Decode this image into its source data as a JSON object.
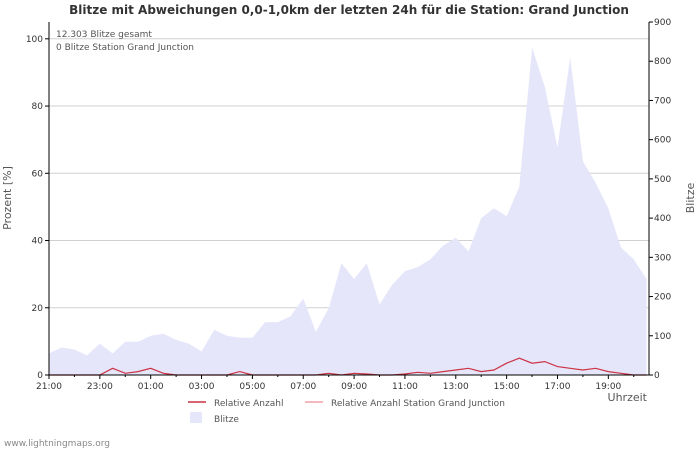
{
  "chart_data": {
    "type": "area",
    "title": "Blitze mit Abweichungen 0,0-1,0km der letzten 24h für die Station: Grand Junction",
    "ylabel_left": "Prozent   [%]",
    "ylabel_right": "Blitze",
    "xlabel": "Uhrzeit",
    "annotations": [
      "12.303 Blitze gesamt",
      "0 Blitze Station Grand Junction"
    ],
    "watermark": "www.lightningmaps.org",
    "x_ticks": [
      "21:00",
      "23:00",
      "01:00",
      "03:00",
      "05:00",
      "07:00",
      "09:00",
      "11:00",
      "13:00",
      "15:00",
      "17:00",
      "19:00"
    ],
    "ylim_left": [
      0,
      105
    ],
    "ylim_right": [
      0,
      900
    ],
    "yticks_left": [
      0,
      20,
      40,
      60,
      80,
      100
    ],
    "yticks_right": [
      0,
      100,
      200,
      300,
      400,
      500,
      600,
      700,
      800,
      900
    ],
    "grid": true,
    "x_range_hours": [
      0,
      23.6
    ],
    "series": [
      {
        "name": "Blitze",
        "axis": "right",
        "color": "#e6e6fa",
        "x_hours": [
          0.0,
          0.5,
          1.0,
          1.5,
          2.0,
          2.5,
          3.0,
          3.5,
          4.0,
          4.5,
          5.0,
          5.5,
          6.0,
          6.5,
          7.0,
          7.5,
          8.0,
          8.5,
          9.0,
          9.5,
          10.0,
          10.5,
          11.0,
          11.5,
          12.0,
          12.5,
          13.0,
          13.5,
          14.0,
          14.5,
          15.0,
          15.5,
          16.0,
          16.5,
          17.0,
          17.5,
          18.0,
          18.5,
          19.0,
          19.5,
          20.0,
          20.5,
          21.0,
          21.5,
          22.0,
          22.5,
          23.0,
          23.5
        ],
        "values": [
          55,
          70,
          65,
          50,
          80,
          55,
          85,
          85,
          100,
          105,
          90,
          80,
          60,
          115,
          100,
          95,
          95,
          135,
          135,
          150,
          195,
          110,
          170,
          285,
          245,
          285,
          180,
          230,
          265,
          275,
          295,
          330,
          350,
          315,
          400,
          425,
          405,
          480,
          835,
          735,
          580,
          810,
          545,
          490,
          425,
          325,
          295,
          245
        ]
      },
      {
        "name": "Relative Anzahl",
        "axis": "left",
        "color": "#cc3344",
        "x_hours": [
          0.0,
          1.0,
          2.0,
          2.5,
          3.0,
          3.5,
          4.0,
          4.5,
          5.0,
          6.0,
          7.0,
          7.5,
          8.0,
          8.5,
          9.0,
          9.5,
          10.0,
          10.5,
          11.0,
          11.5,
          12.0,
          12.5,
          13.0,
          13.5,
          14.0,
          14.5,
          15.0,
          15.5,
          16.0,
          16.5,
          17.0,
          17.5,
          18.0,
          18.5,
          19.0,
          19.5,
          20.0,
          20.5,
          21.0,
          21.5,
          22.0,
          22.5,
          23.0,
          23.5
        ],
        "values": [
          0,
          0,
          0,
          2,
          0.5,
          1,
          2,
          0.5,
          0,
          0,
          0,
          1,
          0,
          0,
          0,
          0,
          0,
          0,
          0.5,
          0,
          0.5,
          0.3,
          0,
          0,
          0.3,
          0.8,
          0.5,
          1,
          1.5,
          2,
          1,
          1.5,
          3.5,
          5,
          3.5,
          4,
          2.5,
          2,
          1.5,
          2,
          1,
          0.5,
          0,
          0
        ]
      },
      {
        "name": "Relative Anzahl Station Grand Junction",
        "axis": "left",
        "color": "#f0a0a8",
        "values": [
          0
        ]
      }
    ],
    "legend": [
      {
        "label": "Relative Anzahl",
        "kind": "line",
        "color": "#cc3344"
      },
      {
        "label": "Relative Anzahl Station Grand Junction",
        "kind": "line",
        "color": "#f0a0a8"
      },
      {
        "label": "Blitze",
        "kind": "area",
        "color": "#e6e6fa"
      }
    ]
  }
}
